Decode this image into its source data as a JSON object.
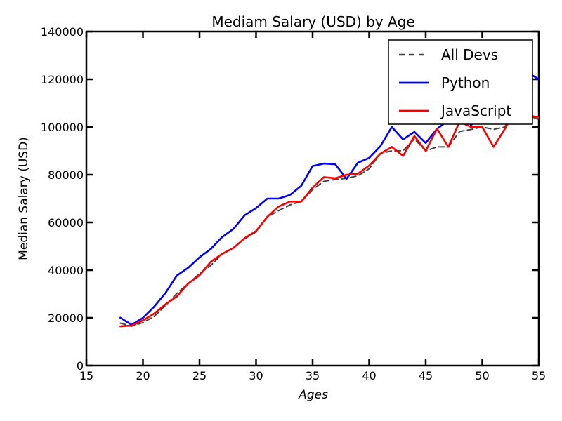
{
  "chart_data": {
    "type": "line",
    "title": "Mediam Salary (USD) by Age",
    "xlabel": "Ages",
    "ylabel": "Median Salary (USD)",
    "xlim": [
      15,
      55
    ],
    "ylim": [
      0,
      140000
    ],
    "x_ticks": [
      "15",
      "20",
      "25",
      "30",
      "35",
      "40",
      "45",
      "50",
      "55"
    ],
    "y_ticks": [
      "0",
      "20000",
      "40000",
      "60000",
      "80000",
      "100000",
      "120000",
      "140000"
    ],
    "legend_position": "top-right",
    "grid": false,
    "x": [
      18,
      19,
      20,
      21,
      22,
      23,
      24,
      25,
      26,
      27,
      28,
      29,
      30,
      31,
      32,
      33,
      34,
      35,
      36,
      37,
      38,
      39,
      40,
      41,
      42,
      43,
      44,
      45,
      46,
      47,
      48,
      49,
      50,
      51,
      52,
      53,
      54,
      55
    ],
    "series": [
      {
        "name": "All Devs",
        "color": "#444444",
        "dash": true,
        "values": [
          17784,
          16500,
          18012,
          20628,
          25206,
          30252,
          34368,
          38496,
          42000,
          46752,
          49320,
          53200,
          56000,
          62316,
          64928,
          67317,
          68748,
          73752,
          77232,
          78000,
          78508,
          79536,
          82488,
          88935,
          90000,
          90056,
          95000,
          90000,
          91633,
          91660,
          98150,
          98964,
          100000,
          98988,
          100000,
          108923,
          105000,
          103117
        ]
      },
      {
        "name": "Python",
        "color": "#0000ff",
        "dash": false,
        "values": [
          20046,
          17100,
          20000,
          24744,
          30500,
          37732,
          41000,
          45372,
          48876,
          53850,
          57287,
          63016,
          65998,
          70003,
          70000,
          71496,
          75370,
          83640,
          84666,
          84392,
          78254,
          85000,
          87038,
          91991,
          100000,
          94796,
          97962,
          93302,
          99240,
          102736,
          112285,
          100771,
          104708,
          108423,
          101407,
          112542,
          122870,
          120000
        ]
      },
      {
        "name": "JavaScript",
        "color": "#ff0000",
        "dash": false,
        "values": [
          16446,
          16791,
          18942,
          21780,
          25704,
          29000,
          34372,
          37810,
          43515,
          46823,
          49293,
          53437,
          56373,
          62375,
          66674,
          68745,
          68746,
          74583,
          79000,
          78508,
          79996,
          80403,
          83820,
          88833,
          91660,
          87892,
          96243,
          90000,
          99313,
          91660,
          102264,
          100000,
          100000,
          91660,
          99240,
          108000,
          105000,
          104000
        ]
      }
    ]
  }
}
